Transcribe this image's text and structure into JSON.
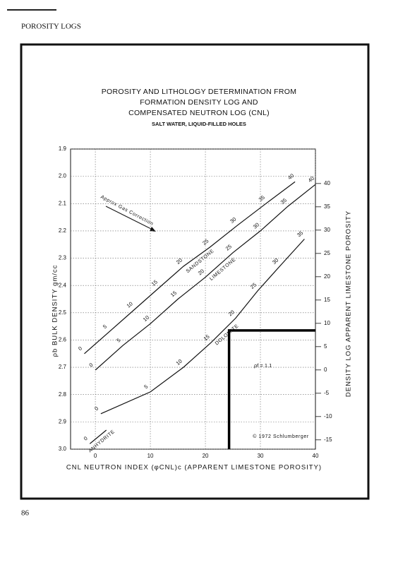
{
  "header": "POROSITY LOGS",
  "page_number": "86",
  "chart_data": {
    "type": "line",
    "title": [
      "POROSITY AND LITHOLOGY DETERMINATION FROM",
      "FORMATION DENSITY LOG AND",
      "COMPENSATED NEUTRON LOG (CNL)"
    ],
    "subtitle": "SALT WATER, LIQUID-FILLED HOLES",
    "x_label": "CNL NEUTRON INDEX (φCNL)c (APPARENT LIMESTONE POROSITY)",
    "y_label": "ρb  BULK DENSITY  gm/cc",
    "y2_label": "DENSITY LOG APPARENT LIMESTONE POROSITY",
    "annotations": [
      "Approx Gas Correction",
      "ρf = 1.1",
      "© 1972 Schlumberger"
    ],
    "xlim": [
      -4.5,
      40
    ],
    "xticks": [
      0,
      10,
      20,
      30,
      40
    ],
    "ylim": [
      3.0,
      1.9
    ],
    "yticks": [
      1.9,
      {
        "value": 2,
        "label": "2.0"
      },
      2.1,
      2.2,
      2.3,
      2.4,
      2.5,
      2.6,
      2.7,
      2.8,
      2.9,
      {
        "value": 3,
        "label": "3.0"
      }
    ],
    "y2lim": [
      -17,
      47.4
    ],
    "y2ticks": [
      -15,
      -10,
      -5,
      0,
      5,
      10,
      15,
      20,
      25,
      30,
      35,
      40
    ],
    "grid": true,
    "series": [
      {
        "name": "SANDSTONE",
        "color": "#111111",
        "x": [
          -2.0,
          2.5,
          7.0,
          11.5,
          16.0,
          20.8,
          25.8,
          31.0,
          36.3
        ],
        "values": [
          2.65,
          2.57,
          2.49,
          2.41,
          2.33,
          2.26,
          2.18,
          2.1,
          2.02
        ],
        "labels": [
          0,
          5,
          10,
          15,
          20,
          25,
          30,
          35,
          40
        ]
      },
      {
        "name": "LIMESTONE",
        "color": "#111111",
        "x": [
          0,
          5,
          10,
          15,
          20,
          25,
          30,
          35,
          40
        ],
        "values": [
          2.71,
          2.62,
          2.54,
          2.45,
          2.37,
          2.28,
          2.2,
          2.11,
          2.03
        ],
        "labels": [
          0,
          5,
          10,
          15,
          20,
          25,
          30,
          35,
          40
        ]
      },
      {
        "name": "DOLOMITE",
        "color": "#111111",
        "x": [
          1,
          10,
          16,
          21,
          25.5,
          29.5,
          33.5,
          38
        ],
        "values": [
          2.87,
          2.79,
          2.7,
          2.61,
          2.52,
          2.42,
          2.33,
          2.23
        ],
        "labels": [
          0,
          5,
          10,
          15,
          20,
          25,
          30,
          35
        ]
      },
      {
        "name": "ANHYDRITE",
        "color": "#111111",
        "x": [
          -1,
          2
        ],
        "values": [
          2.98,
          2.93
        ],
        "labels": [
          0
        ]
      }
    ],
    "example_path": {
      "x": [
        24.3,
        24.3,
        40
      ],
      "values": [
        3.0,
        2.565,
        2.565
      ]
    }
  }
}
